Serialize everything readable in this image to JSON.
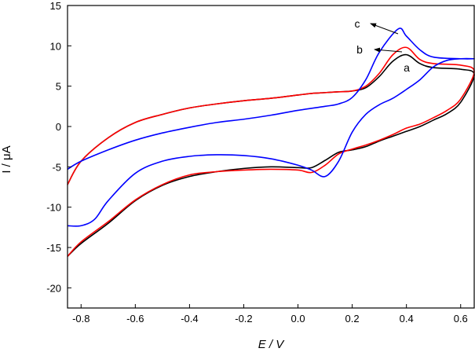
{
  "chart_data": {
    "type": "line",
    "title": "",
    "xlabel": "E / V",
    "ylabel": "I / μA",
    "xlim": [
      -0.85,
      0.65
    ],
    "ylim": [
      -22.5,
      15
    ],
    "x_ticks": [
      {
        "value": -0.8,
        "label": "-0.8"
      },
      {
        "value": -0.6,
        "label": "-0.6"
      },
      {
        "value": -0.4,
        "label": "-0.4"
      },
      {
        "value": -0.2,
        "label": "-0.2"
      },
      {
        "value": 0.0,
        "label": "0.0"
      },
      {
        "value": 0.2,
        "label": "0.2"
      },
      {
        "value": 0.4,
        "label": "0.4"
      },
      {
        "value": 0.6,
        "label": "0.6"
      }
    ],
    "y_ticks": [
      {
        "value": 15,
        "label": "15"
      },
      {
        "value": 10,
        "label": "10"
      },
      {
        "value": 5,
        "label": "5"
      },
      {
        "value": 0,
        "label": "0"
      },
      {
        "value": -5,
        "label": "-5"
      },
      {
        "value": -10,
        "label": "-10"
      },
      {
        "value": -15,
        "label": "-15"
      },
      {
        "value": -20,
        "label": "-20"
      }
    ],
    "grid": false,
    "legend": "none",
    "series": [
      {
        "name": "a",
        "color": "#000000",
        "x": [
          -0.85,
          -0.8,
          -0.7,
          -0.6,
          -0.5,
          -0.4,
          -0.3,
          -0.2,
          -0.1,
          0.0,
          0.05,
          0.1,
          0.15,
          0.2,
          0.25,
          0.3,
          0.35,
          0.4,
          0.45,
          0.5,
          0.55,
          0.6,
          0.65,
          0.6,
          0.5,
          0.45,
          0.4,
          0.35,
          0.3,
          0.25,
          0.2,
          0.15,
          0.1,
          0.05,
          0.0,
          -0.1,
          -0.2,
          -0.3,
          -0.4,
          -0.5,
          -0.6,
          -0.7,
          -0.8,
          -0.85
        ],
        "y": [
          -16.1,
          -14.5,
          -12.0,
          -9.2,
          -7.3,
          -6.2,
          -5.6,
          -5.2,
          -5.0,
          -5.1,
          -5.1,
          -4.2,
          -3.2,
          -2.9,
          -2.5,
          -1.8,
          -1.2,
          -0.6,
          0.0,
          0.8,
          1.6,
          3.0,
          6.4,
          7.1,
          7.3,
          7.8,
          8.9,
          8.1,
          6.2,
          4.8,
          4.4,
          4.3,
          4.2,
          4.1,
          3.9,
          3.5,
          3.2,
          2.8,
          2.3,
          1.5,
          0.5,
          -1.4,
          -4.3,
          -7.2
        ]
      },
      {
        "name": "b",
        "color": "#ff0000",
        "x": [
          -0.85,
          -0.8,
          -0.7,
          -0.6,
          -0.5,
          -0.4,
          -0.3,
          -0.2,
          -0.1,
          0.0,
          0.05,
          0.1,
          0.15,
          0.2,
          0.25,
          0.3,
          0.35,
          0.4,
          0.45,
          0.5,
          0.55,
          0.6,
          0.65,
          0.6,
          0.5,
          0.45,
          0.4,
          0.35,
          0.3,
          0.25,
          0.2,
          0.15,
          0.1,
          0.05,
          0.0,
          -0.1,
          -0.2,
          -0.3,
          -0.4,
          -0.5,
          -0.6,
          -0.7,
          -0.8,
          -0.85
        ],
        "y": [
          -16.1,
          -14.3,
          -11.8,
          -9.1,
          -7.2,
          -6.0,
          -5.6,
          -5.4,
          -5.3,
          -5.4,
          -5.7,
          -4.8,
          -3.4,
          -2.8,
          -2.3,
          -1.7,
          -1.0,
          -0.2,
          0.3,
          1.1,
          2.0,
          3.4,
          6.8,
          7.6,
          7.8,
          8.3,
          9.8,
          8.9,
          6.6,
          5.0,
          4.4,
          4.3,
          4.2,
          4.1,
          3.9,
          3.5,
          3.2,
          2.8,
          2.3,
          1.5,
          0.5,
          -1.4,
          -4.3,
          -7.2
        ]
      },
      {
        "name": "c",
        "color": "#0000ff",
        "x": [
          -0.85,
          -0.8,
          -0.75,
          -0.7,
          -0.6,
          -0.5,
          -0.4,
          -0.3,
          -0.2,
          -0.1,
          0.0,
          0.05,
          0.1,
          0.15,
          0.2,
          0.25,
          0.3,
          0.35,
          0.4,
          0.45,
          0.5,
          0.55,
          0.6,
          0.65,
          0.6,
          0.5,
          0.45,
          0.4,
          0.37,
          0.3,
          0.25,
          0.2,
          0.15,
          0.1,
          0.0,
          -0.1,
          -0.2,
          -0.3,
          -0.4,
          -0.5,
          -0.6,
          -0.7,
          -0.8,
          -0.85
        ],
        "y": [
          -12.3,
          -12.3,
          -11.5,
          -9.2,
          -5.8,
          -4.3,
          -3.7,
          -3.5,
          -3.6,
          -4.0,
          -4.8,
          -5.4,
          -6.2,
          -4.3,
          -0.7,
          1.5,
          2.7,
          3.5,
          4.6,
          5.8,
          7.4,
          8.2,
          8.4,
          8.4,
          8.4,
          8.6,
          9.5,
          11.2,
          12.1,
          9.2,
          5.8,
          3.6,
          2.8,
          2.5,
          2.0,
          1.4,
          0.9,
          0.5,
          -0.1,
          -0.8,
          -1.7,
          -2.9,
          -4.3,
          -5.3
        ]
      }
    ],
    "annotations": [
      {
        "text": "a",
        "series": "a"
      },
      {
        "text": "b",
        "series": "b"
      },
      {
        "text": "c",
        "series": "c"
      }
    ]
  }
}
